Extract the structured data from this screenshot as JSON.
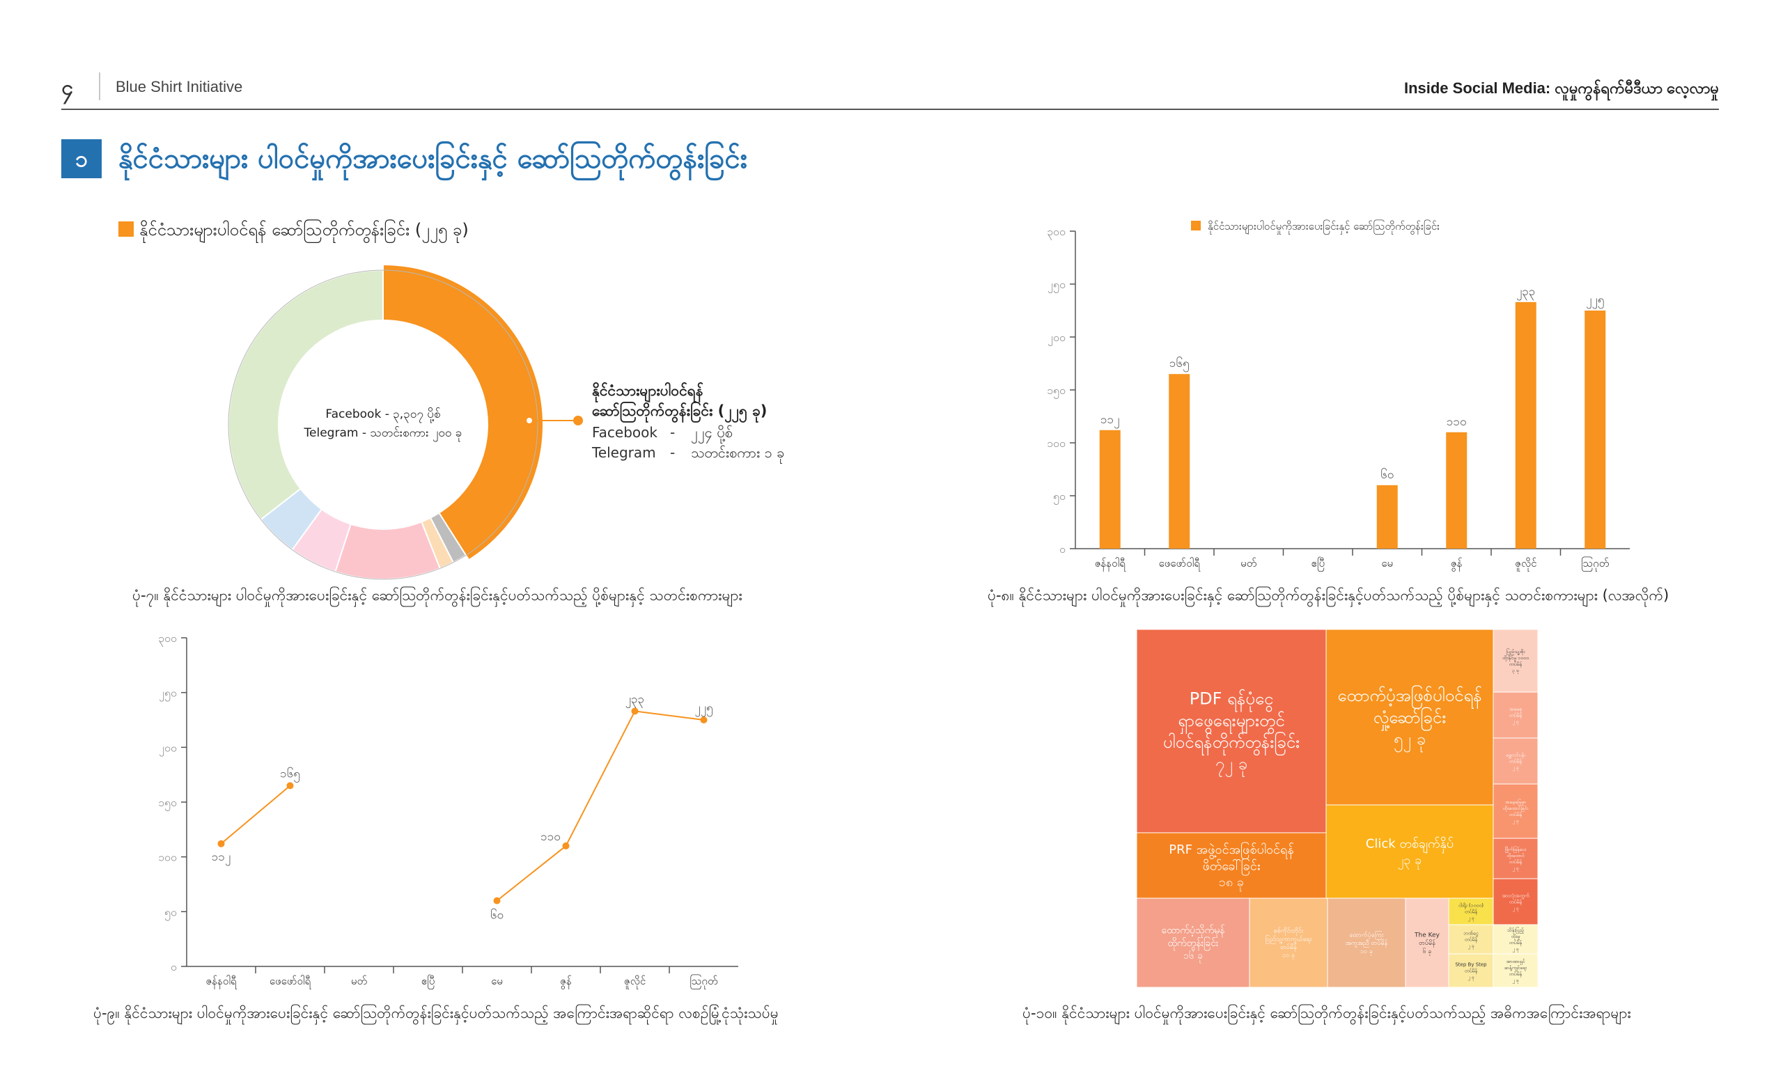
{
  "header": {
    "page_number": "၄",
    "org_name": "Blue Shirt Initiative",
    "doc_title": "Inside Social Media: လူမှုကွန်ရက်မီဒီယာ လေ့လာမှု"
  },
  "section": {
    "number": "၁",
    "title": "နိုင်ငံသားများ ပါဝင်မှုကိုအားပေးခြင်းနှင့် ဆော်ဩတိုက်တွန်းခြင်း"
  },
  "colors": {
    "accent": "#f7931e",
    "section_blue": "#2471b0",
    "treemap": [
      "#f06b4a",
      "#f7931e",
      "#f58220",
      "#fbb117",
      "#f4a08a",
      "#fbbf80",
      "#f0b68e",
      "#fcd0c0",
      "#f9e14c",
      "#fbe9a0",
      "#fdf5c6"
    ]
  },
  "charts": {
    "donut_caption": "ပုံ-၇။ နိုင်ငံသားများ ပါဝင်မှုကိုအားပေးခြင်းနှင့် ဆော်ဩတိုက်တွန်းခြင်းနှင့်ပတ်သက်သည့် ပို့စ်များနှင့် သတင်းစကားများ",
    "bar_caption": "ပုံ-၈။ နိုင်ငံသားများ ပါဝင်မှုကိုအားပေးခြင်းနှင့် ဆော်ဩတိုက်တွန်းခြင်းနှင့်ပတ်သက်သည့် ပို့စ်များနှင့် သတင်းစကားများ (လအလိုက်)",
    "line_caption": "ပုံ-၉။ နိုင်ငံသားများ ပါဝင်မှုကိုအားပေးခြင်းနှင့် ဆော်ဩတိုက်တွန်းခြင်းနှင့်ပတ်သက်သည့် အကြောင်းအရာဆိုင်ရာ လစဉ်မြုံ့ငုံသုံးသပ်မှု",
    "treemap_caption": "ပုံ-၁၀။ နိုင်ငံသားများ ပါဝင်မှုကိုအားပေးခြင်းနှင့် ဆော်ဩတိုက်တွန်းခြင်းနှင့်ပတ်သက်သည့် အဓိကအကြောင်းအရာများ"
  },
  "chart_data": [
    {
      "type": "pie",
      "legend": "နိုင်ငံသားများပါဝင်ရန် ဆော်ဩတိုက်တွန်းခြင်း (၂၂၅ ခု)",
      "center_lines": [
        "Facebook - ၃,၃၀၇ ပို့စ်",
        "Telegram - သတင်းစကား ၂၀၀ ခု"
      ],
      "callout": {
        "title_lines": [
          "နိုင်ငံသားများပါဝင်ရန်",
          "ဆော်ဩတိုက်တွန်းခြင်း (၂၂၅ ခု)"
        ],
        "rows": [
          {
            "label": "Facebook",
            "value": "၂၂၄ ပို့စ်"
          },
          {
            "label": "Telegram",
            "value": "သတင်းစကား ၁ ခု"
          }
        ]
      },
      "slices": [
        {
          "value": 41,
          "color": "#f7931e",
          "highlight": true
        },
        {
          "value": 1.5,
          "color": "#bdbdbd"
        },
        {
          "value": 1.5,
          "color": "#fcdcb4"
        },
        {
          "value": 11,
          "color": "#fcc5cc"
        },
        {
          "value": 5,
          "color": "#fdd6e4"
        },
        {
          "value": 4.5,
          "color": "#cfe3f5"
        },
        {
          "value": 35.5,
          "color": "#dcebcc"
        }
      ]
    },
    {
      "type": "bar",
      "title": "နိုင်ငံသားများပါဝင်မှုကိုအားပေးခြင်းနှင့် ဆော်ဩတိုက်တွန်းခြင်း",
      "categories": [
        "ဇန်နဝါရီ",
        "ဖေဖော်ဝါရီ",
        "မတ်",
        "ဧပြီ",
        "မေ",
        "ဇွန်",
        "ဇူလိုင်",
        "ဩဂုတ်"
      ],
      "values": [
        112,
        165,
        null,
        null,
        60,
        110,
        233,
        225
      ],
      "value_labels": [
        "၁၁၂",
        "၁၆၅",
        "",
        "",
        "၆၀",
        "၁၁၀",
        "၂၃၃",
        "၂၂၅"
      ],
      "yticks": [
        0,
        50,
        100,
        150,
        200,
        250,
        300
      ],
      "ytick_labels": [
        "၀",
        "၅၀",
        "၁၀၀",
        "၁၅၀",
        "၂၀၀",
        "၂၅၀",
        "၃၀၀"
      ],
      "ylim": [
        0,
        300
      ]
    },
    {
      "type": "line",
      "categories": [
        "ဇန်နဝါရီ",
        "ဖေဖော်ဝါရီ",
        "မတ်",
        "ဧပြီ",
        "မေ",
        "ဇွန်",
        "ဇူလိုင်",
        "ဩဂုတ်"
      ],
      "values": [
        112,
        165,
        null,
        null,
        60,
        110,
        233,
        225
      ],
      "value_labels": [
        "၁၁၂",
        "၁၆၅",
        "",
        "",
        "၆၀",
        "၁၁၀",
        "၂၃၃",
        "၂၂၅"
      ],
      "yticks": [
        0,
        50,
        100,
        150,
        200,
        250,
        300
      ],
      "ytick_labels": [
        "၀",
        "၅၀",
        "၁၀၀",
        "၁၅၀",
        "၂၀၀",
        "၂၅၀",
        "၃၀၀"
      ],
      "ylim": [
        0,
        300
      ]
    },
    {
      "type": "treemap",
      "cells": [
        {
          "lines": [
            "PDF ရန်ပုံငွေ",
            "ရှာဖွေရေးများတွင်",
            "ပါဝင်ရန်တိုက်တွန်းခြင်း"
          ],
          "value_text": "၇၂ ခု",
          "color": "#f06b4a",
          "size": "large"
        },
        {
          "lines": [
            "ထောက်ပံ့အဖြစ်ပါဝင်ရန်",
            "လှုံ့ဆော်ခြင်း"
          ],
          "value_text": "၅၂ ခု",
          "color": "#f7931e",
          "size": "large"
        },
        {
          "lines": [
            "PRF အဖွဲ့ဝင်အဖြစ်ပါဝင်ရန်",
            "ဖိတ်ခေါ်ခြင်း"
          ],
          "value_text": "၁၈ ခု",
          "color": "#f58220",
          "size": "medium"
        },
        {
          "lines": [
            "Click တစ်ချက်နှိပ်"
          ],
          "value_text": "၂၃ ခု",
          "color": "#fbb117",
          "size": "medium"
        },
        {
          "lines": [
            "ထောက်ပံ့သိုက်မှန်",
            "ထိုက်တွန်းခြင်း"
          ],
          "value_text": "၁၆ ခု",
          "color": "#f4a08a",
          "size": "small"
        },
        {
          "lines": [
            "စစ်ကိုင်းတိုင်း",
            "ပြည်သူ့ကာကွယ်ရေး",
            "တပ်မိန်"
          ],
          "value_text": "၁၀ ခု",
          "color": "#fbbf80",
          "size": "tiny"
        },
        {
          "lines": [
            "ထောက်ပံ့ကြေး",
            "အကူအညီ တပ်မိန်"
          ],
          "value_text": "၁၀ ခု",
          "color": "#f0b68e",
          "size": "tiny"
        },
        {
          "lines": [
            "The Key",
            "တပ်မိန်"
          ],
          "value_text": "၆ ခု",
          "color": "#fcd0c0",
          "size": "tiny"
        },
        {
          "lines": [
            "ငါးရိုး (၁၀၀၀)",
            "တပ်မိန်"
          ],
          "value_text": "၂ ခု",
          "color": "#f9e14c",
          "size": "micro"
        },
        {
          "lines": [
            "ဘဏ်ငွေ",
            "တပ်မိန်"
          ],
          "value_text": "၂ ခု",
          "color": "#fbe9a0",
          "size": "micro"
        },
        {
          "lines": [
            "Step By Step",
            "တပ်မိန်"
          ],
          "value_text": "၂ ခု",
          "color": "#fbe9a0",
          "size": "micro"
        },
        {
          "lines": [
            "ပြည်သူ့အိုး",
            "ထိုးနိုင်မှု ၁၀၀၀",
            "တပ်မိန်"
          ],
          "value_text": "၃ ခု",
          "color": "#fcd0c0",
          "size": "micro"
        },
        {
          "lines": [
            "အမေစု",
            "တပ်မိန်"
          ],
          "value_text": "၂ ခု",
          "color": "#f9a88e",
          "size": "micro"
        },
        {
          "lines": [
            "ရွှေလင်ပန်း",
            "တပ်မိန်"
          ],
          "value_text": "၂ ခု",
          "color": "#f9a88e",
          "size": "micro"
        },
        {
          "lines": [
            "အမေ့မြေမှာ",
            "ထိုးထောင်ခြင်း",
            "တပ်မိန်"
          ],
          "value_text": "၂ ခု",
          "color": "#f8946e",
          "size": "micro"
        },
        {
          "lines": [
            "ဖြိုက်ဖြန်ပေး",
            "ထိုးထောင်",
            "တပ်မိန်"
          ],
          "value_text": "၂ ခု",
          "color": "#f37f5e",
          "size": "micro"
        },
        {
          "lines": [
            "အားလုံးအတွက်",
            "တပ်မိန်"
          ],
          "value_text": "၂ ခု",
          "color": "#f06b4a",
          "size": "micro"
        },
        {
          "lines": [
            "သိန်းပြည့်",
            "ထိုးမှု",
            "တပ်မိန်"
          ],
          "value_text": "၂ ခု",
          "color": "#fdf5c6",
          "size": "micro"
        },
        {
          "lines": [
            "အာဏာရှင်",
            "ဆန့်ကျင်ရေး",
            "တပ်မိန်"
          ],
          "value_text": "၂ ခု",
          "color": "#fdf5c6",
          "size": "micro"
        }
      ]
    }
  ]
}
